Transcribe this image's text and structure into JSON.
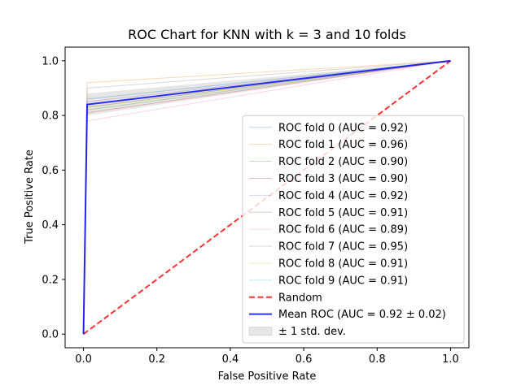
{
  "chart_data": {
    "type": "line",
    "title": "ROC Chart for KNN with k = 3 and 10 folds",
    "xlabel": "False Positive Rate",
    "ylabel": "True Positive Rate",
    "xlim": [
      -0.05,
      1.05
    ],
    "ylim": [
      -0.05,
      1.05
    ],
    "xticks": [
      "0.0",
      "0.2",
      "0.4",
      "0.6",
      "0.8",
      "1.0"
    ],
    "yticks": [
      "0.0",
      "0.2",
      "0.4",
      "0.6",
      "0.8",
      "1.0"
    ],
    "grid": false,
    "legend_position": "lower-right",
    "series": [
      {
        "name": "ROC fold 0 (AUC = 0.92)",
        "color": "#1f77b4",
        "x": [
          0,
          0.01,
          1
        ],
        "y": [
          0,
          0.86,
          1
        ]
      },
      {
        "name": "ROC fold 1 (AUC = 0.96)",
        "color": "#ff7f0e",
        "x": [
          0,
          0.01,
          1
        ],
        "y": [
          0,
          0.92,
          1
        ]
      },
      {
        "name": "ROC fold 2 (AUC = 0.90)",
        "color": "#2ca02c",
        "x": [
          0,
          0.01,
          1
        ],
        "y": [
          0,
          0.82,
          1
        ]
      },
      {
        "name": "ROC fold 3 (AUC = 0.90)",
        "color": "#d62728",
        "x": [
          0,
          0.01,
          1
        ],
        "y": [
          0,
          0.81,
          1
        ]
      },
      {
        "name": "ROC fold 4 (AUC = 0.92)",
        "color": "#9467bd",
        "x": [
          0,
          0.01,
          1
        ],
        "y": [
          0,
          0.85,
          1
        ]
      },
      {
        "name": "ROC fold 5 (AUC = 0.91)",
        "color": "#8c564b",
        "x": [
          0,
          0.01,
          1
        ],
        "y": [
          0,
          0.83,
          1
        ]
      },
      {
        "name": "ROC fold 6 (AUC = 0.89)",
        "color": "#e377c2",
        "x": [
          0,
          0.01,
          1
        ],
        "y": [
          0,
          0.78,
          1
        ]
      },
      {
        "name": "ROC fold 7 (AUC = 0.95)",
        "color": "#7f7f7f",
        "x": [
          0,
          0.01,
          1
        ],
        "y": [
          0,
          0.9,
          1
        ]
      },
      {
        "name": "ROC fold 8 (AUC = 0.91)",
        "color": "#bcbd22",
        "x": [
          0,
          0.01,
          1
        ],
        "y": [
          0,
          0.83,
          1
        ]
      },
      {
        "name": "ROC fold 9 (AUC = 0.91)",
        "color": "#17becf",
        "x": [
          0,
          0.01,
          1
        ],
        "y": [
          0,
          0.84,
          1
        ]
      }
    ],
    "random": {
      "name": "Random",
      "color": "#ff0000",
      "x": [
        0,
        1
      ],
      "y": [
        0,
        1
      ]
    },
    "mean": {
      "name": "Mean ROC (AUC = 0.92 ± 0.02)",
      "color": "#0000ff",
      "x": [
        0,
        0.01,
        1
      ],
      "y": [
        0,
        0.84,
        1
      ]
    },
    "std_band": {
      "name": "± 1 std. dev.",
      "color": "#808080",
      "x": [
        0,
        0.01,
        1
      ],
      "upper": [
        0,
        0.88,
        1
      ],
      "lower": [
        0,
        0.8,
        1
      ]
    }
  }
}
